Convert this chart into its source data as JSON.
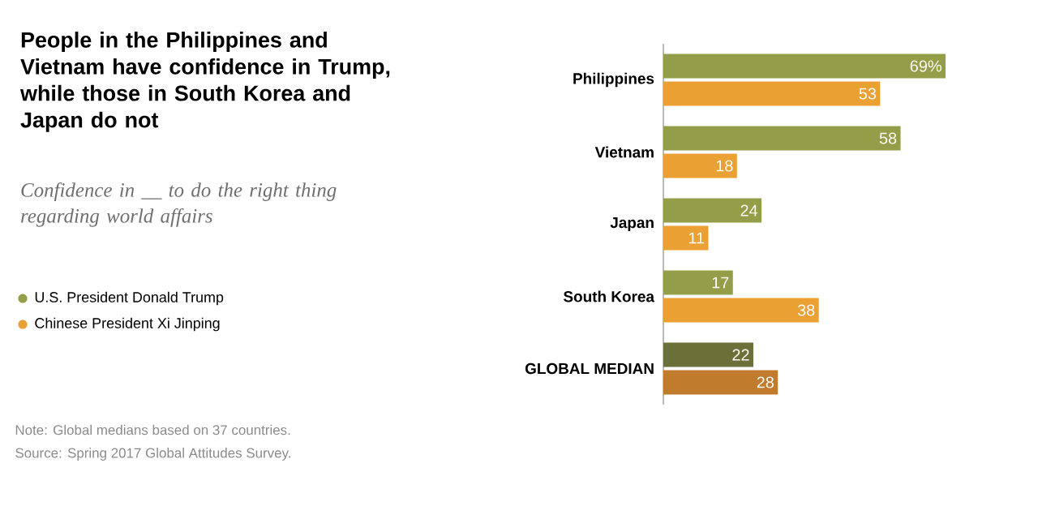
{
  "chart_data": {
    "type": "bar",
    "orientation": "horizontal",
    "title": "People in the Philippines and Vietnam have confidence in Trump, while those in South Korea and Japan do not",
    "subtitle": "Confidence in __ to do the right thing regarding world affairs",
    "categories": [
      "Philippines",
      "Vietnam",
      "Japan",
      "South Korea",
      "GLOBAL MEDIAN"
    ],
    "series": [
      {
        "name": "U.S. President Donald Trump",
        "color": "#949d48",
        "colors": [
          "#949d48",
          "#949d48",
          "#949d48",
          "#949d48",
          "#6b6f38"
        ],
        "values": [
          69,
          58,
          24,
          17,
          22
        ],
        "value_labels": [
          "69%",
          "58",
          "24",
          "17",
          "22"
        ]
      },
      {
        "name": "Chinese President Xi Jinping",
        "color": "#eba033",
        "colors": [
          "#eba033",
          "#eba033",
          "#eba033",
          "#eba033",
          "#c07b2c"
        ],
        "values": [
          53,
          18,
          11,
          38,
          28
        ],
        "value_labels": [
          "53",
          "18",
          "11",
          "38",
          "28"
        ]
      }
    ],
    "legend": "left",
    "annotations": [
      "Note: Global medians based on 37 countries.",
      "Source: Spring 2017 Global Attitudes Survey."
    ]
  }
}
